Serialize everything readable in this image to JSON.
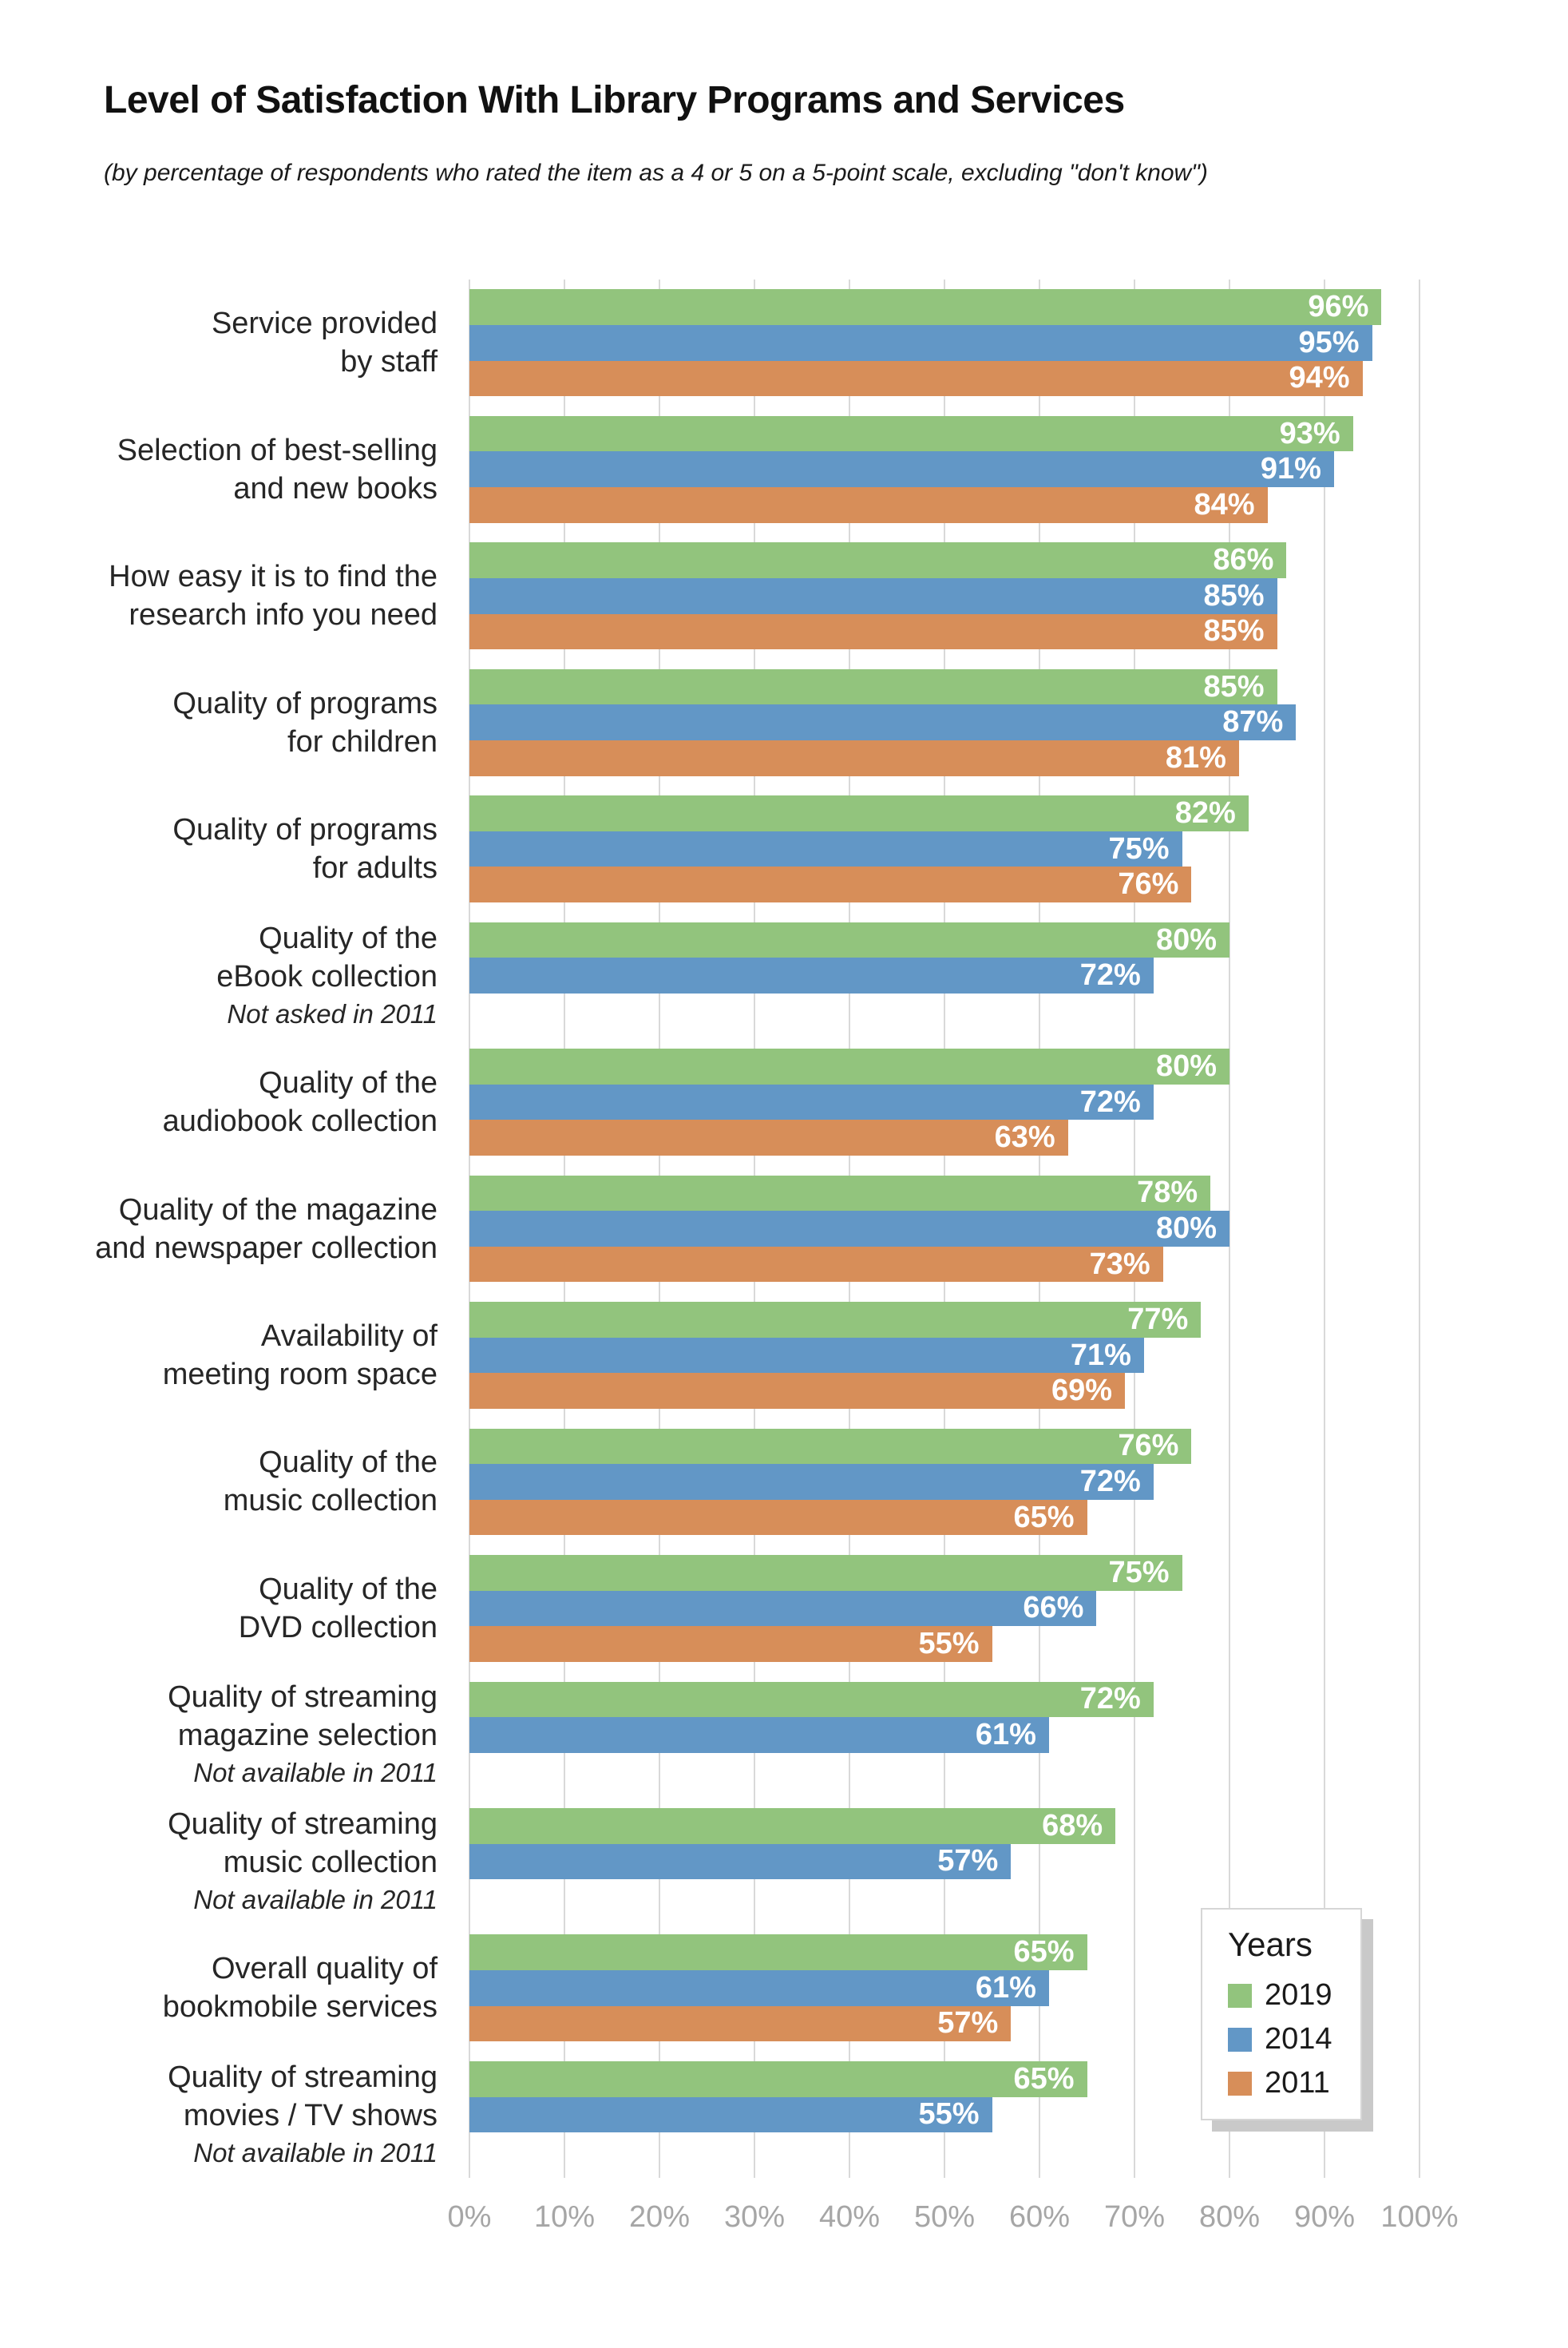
{
  "chart_data": {
    "type": "bar",
    "orientation": "horizontal",
    "title": "Level of Satisfaction With Library Programs and Services",
    "subtitle": "(by percentage of respondents who rated the item as a 4 or 5 on a 5-point scale, excluding \"don't know\")",
    "value_unit": "%",
    "xlim": [
      0,
      100
    ],
    "x_ticks": [
      "0%",
      "10%",
      "20%",
      "30%",
      "40%",
      "50%",
      "60%",
      "70%",
      "80%",
      "90%",
      "100%"
    ],
    "grid": true,
    "legend": {
      "title": "Years",
      "position": "bottom-right"
    },
    "series": [
      {
        "name": "2019",
        "color": "#92C47D"
      },
      {
        "name": "2014",
        "color": "#6297C6"
      },
      {
        "name": "2011",
        "color": "#D78E59"
      }
    ],
    "categories": [
      {
        "label_lines": [
          "Service provided",
          "by staff"
        ],
        "note": null,
        "values": [
          96,
          95,
          94
        ]
      },
      {
        "label_lines": [
          "Selection of best-selling",
          "and new books"
        ],
        "note": null,
        "values": [
          93,
          91,
          84
        ]
      },
      {
        "label_lines": [
          "How easy it is to find the",
          "research info you need"
        ],
        "note": null,
        "values": [
          86,
          85,
          85
        ]
      },
      {
        "label_lines": [
          "Quality of programs",
          "for children"
        ],
        "note": null,
        "values": [
          85,
          87,
          81
        ]
      },
      {
        "label_lines": [
          "Quality of programs",
          "for adults"
        ],
        "note": null,
        "values": [
          82,
          75,
          76
        ]
      },
      {
        "label_lines": [
          "Quality of the",
          "eBook collection"
        ],
        "note": "Not asked in 2011",
        "values": [
          80,
          72,
          null
        ]
      },
      {
        "label_lines": [
          "Quality of the",
          "audiobook collection"
        ],
        "note": null,
        "values": [
          80,
          72,
          63
        ]
      },
      {
        "label_lines": [
          "Quality of the magazine",
          "and newspaper collection"
        ],
        "note": null,
        "values": [
          78,
          80,
          73
        ]
      },
      {
        "label_lines": [
          "Availability of",
          "meeting room space"
        ],
        "note": null,
        "values": [
          77,
          71,
          69
        ]
      },
      {
        "label_lines": [
          "Quality of the",
          "music collection"
        ],
        "note": null,
        "values": [
          76,
          72,
          65
        ]
      },
      {
        "label_lines": [
          "Quality of the",
          "DVD collection"
        ],
        "note": null,
        "values": [
          75,
          66,
          55
        ]
      },
      {
        "label_lines": [
          "Quality of streaming",
          "magazine selection"
        ],
        "note": "Not available in 2011",
        "values": [
          72,
          61,
          null
        ]
      },
      {
        "label_lines": [
          "Quality of streaming",
          "music collection"
        ],
        "note": "Not available in 2011",
        "values": [
          68,
          57,
          null
        ]
      },
      {
        "label_lines": [
          "Overall quality of",
          "bookmobile services"
        ],
        "note": null,
        "values": [
          65,
          61,
          57
        ]
      },
      {
        "label_lines": [
          "Quality of streaming",
          "movies / TV shows"
        ],
        "note": "Not available in 2011",
        "values": [
          65,
          55,
          null
        ]
      }
    ],
    "colors": {
      "grid": "#D9D9D9",
      "axis_labels": "#A6A6A6",
      "value_labels": "#FFFFFF",
      "text": "#262626"
    }
  }
}
